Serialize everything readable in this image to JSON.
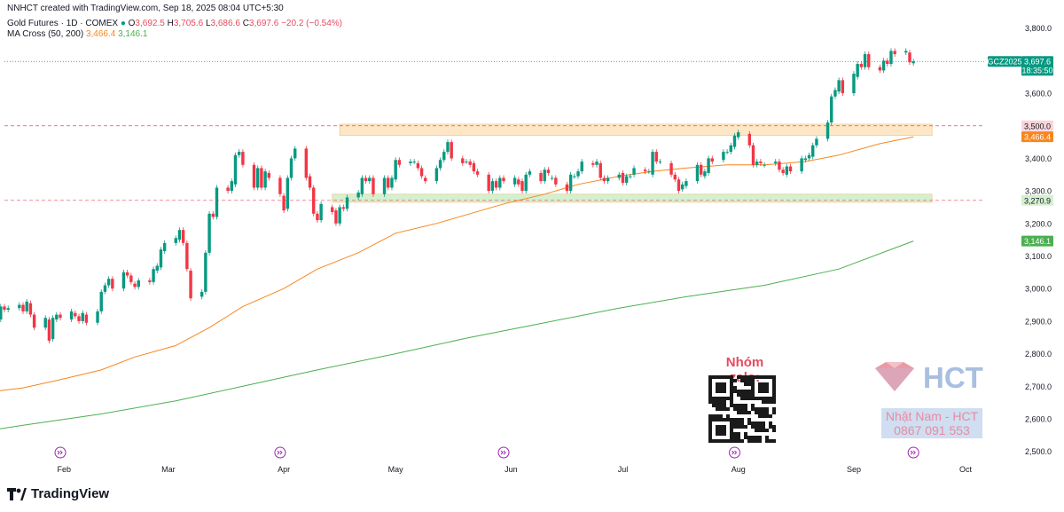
{
  "header": {
    "credit": "NNHCT created with TradingView.com, Sep 18, 2025 08:04 UTC+5:30",
    "symbol": "Gold Futures · 1D · COMEX",
    "ohlc": {
      "o_label": "O",
      "o": "3,692.5",
      "h_label": "H",
      "h": "3,705.6",
      "l_label": "L",
      "l": "3,686.6",
      "c_label": "C",
      "c": "3,697.6",
      "change": "−20.2 (−0.54%)"
    },
    "ma_label": "MA Cross (50, 200)",
    "ma50": "3,466.4",
    "ma200": "3,146.1"
  },
  "brand": {
    "name": "TradingView"
  },
  "watermark": {
    "group_label": "Nhóm zalo:",
    "logo_text": "HCT",
    "name": "Nhật Nam - HCT",
    "phone": "0867 091 553"
  },
  "chart_data": {
    "type": "candlestick",
    "ylim": [
      2480,
      3840
    ],
    "y_ticks": [
      2500,
      2600,
      2700,
      2800,
      2900,
      3000,
      3100,
      3200,
      3300,
      3400,
      3500,
      3600,
      3700,
      3800
    ],
    "y_tick_labels": [
      "2,500.0",
      "2,600.0",
      "2,700.0",
      "2,800.0",
      "2,900.0",
      "3,000.0",
      "3,100.0",
      "3,200.0",
      "3,300.0",
      "3,400.0",
      "3,500.0",
      "3,600.0",
      "3,700.0",
      "3,800.0"
    ],
    "x_labels": [
      "Feb",
      "Mar",
      "Apr",
      "May",
      "Jun",
      "Jul",
      "Aug",
      "Sep",
      "Oct"
    ],
    "x_label_dates": [
      "2025-02-01",
      "2025-03-01",
      "2025-04-01",
      "2025-05-01",
      "2025-06-01",
      "2025-07-01",
      "2025-08-01",
      "2025-09-01",
      "2025-10-01"
    ],
    "date_range": [
      "2025-01-16",
      "2025-10-06"
    ],
    "last_bar": "2025-09-17",
    "levels": {
      "resistance": 3500.0,
      "support": 3270.9,
      "last_price": 3697.6
    },
    "zones": [
      {
        "name": "resistance-zone",
        "from": 3470,
        "to": 3505,
        "start": "2025-04-16",
        "end": "2025-09-22",
        "color": "#fde7c6"
      },
      {
        "name": "support-zone",
        "from": 3265,
        "to": 3290,
        "start": "2025-04-14",
        "end": "2025-09-22",
        "color": "#d4f0cf"
      }
    ],
    "price_labels": [
      {
        "text": "3,800.0",
        "value": 3800,
        "kind": "tick"
      },
      {
        "text": "GCZ2025",
        "value": 3697.6,
        "kind": "symbol"
      },
      {
        "text": "3,697.6",
        "value": 3697.6,
        "kind": "last"
      },
      {
        "text": "18:35:50",
        "value": 3697.6,
        "kind": "countdown"
      },
      {
        "text": "3,500.0",
        "value": 3500,
        "kind": "line"
      },
      {
        "text": "3,466.4",
        "value": 3466.4,
        "kind": "ma50"
      },
      {
        "text": "3,270.9",
        "value": 3270.9,
        "kind": "support"
      },
      {
        "text": "3,146.1",
        "value": 3146.1,
        "kind": "ma200"
      }
    ],
    "ma50": [
      [
        0,
        2655
      ],
      [
        10,
        2658
      ],
      [
        20,
        2665
      ],
      [
        30,
        2680
      ],
      [
        40,
        2695
      ],
      [
        50,
        2720
      ],
      [
        60,
        2750
      ],
      [
        70,
        2790
      ],
      [
        80,
        2825
      ],
      [
        90,
        2880
      ],
      [
        100,
        2945
      ],
      [
        110,
        3000
      ],
      [
        120,
        3060
      ],
      [
        130,
        3110
      ],
      [
        140,
        3170
      ],
      [
        150,
        3200
      ],
      [
        160,
        3230
      ],
      [
        170,
        3260
      ],
      [
        180,
        3290
      ],
      [
        190,
        3320
      ],
      [
        200,
        3345
      ],
      [
        210,
        3360
      ],
      [
        220,
        3370
      ],
      [
        230,
        3380
      ],
      [
        240,
        3380
      ],
      [
        250,
        3390
      ],
      [
        260,
        3410
      ],
      [
        270,
        3445
      ],
      [
        280,
        3466
      ]
    ],
    "ma200": [
      [
        0,
        2515
      ],
      [
        20,
        2545
      ],
      [
        40,
        2580
      ],
      [
        60,
        2615
      ],
      [
        80,
        2655
      ],
      [
        100,
        2700
      ],
      [
        120,
        2750
      ],
      [
        140,
        2800
      ],
      [
        160,
        2850
      ],
      [
        180,
        2895
      ],
      [
        200,
        2940
      ],
      [
        220,
        2975
      ],
      [
        240,
        3010
      ],
      [
        260,
        3060
      ],
      [
        280,
        3146
      ]
    ],
    "candles": [
      [
        2690,
        2720
      ],
      [
        2715,
        2730
      ],
      [
        2720,
        2700
      ],
      [
        2705,
        2750
      ],
      [
        2745,
        2760
      ],
      [
        2760,
        2735
      ],
      [
        2740,
        2765
      ],
      [
        2760,
        2780
      ],
      [
        2778,
        2750
      ],
      [
        2755,
        2765
      ],
      [
        2770,
        2755
      ],
      [
        2760,
        2830
      ],
      [
        2830,
        2820
      ],
      [
        2820,
        2840
      ],
      [
        2840,
        2860
      ],
      [
        2860,
        2880
      ],
      [
        2875,
        2870
      ],
      [
        2870,
        2895
      ],
      [
        2890,
        2910
      ],
      [
        2905,
        2900
      ],
      [
        2900,
        2930
      ],
      [
        2925,
        2940
      ],
      [
        2935,
        2950
      ],
      [
        2950,
        2900
      ],
      [
        2905,
        2945
      ],
      [
        2945,
        2935
      ],
      [
        2935,
        2940
      ],
      [
        2940,
        2950
      ],
      [
        2950,
        2930
      ],
      [
        2930,
        2960
      ],
      [
        2955,
        2920
      ],
      [
        2920,
        2880
      ],
      [
        2880,
        2910
      ],
      [
        2905,
        2840
      ],
      [
        2845,
        2910
      ],
      [
        2905,
        2920
      ],
      [
        2920,
        2910
      ],
      [
        2905,
        2930
      ],
      [
        2925,
        2915
      ],
      [
        2915,
        2900
      ],
      [
        2900,
        2925
      ],
      [
        2920,
        2895
      ],
      [
        2895,
        2930
      ],
      [
        2930,
        2990
      ],
      [
        2990,
        3010
      ],
      [
        3010,
        3030
      ],
      [
        3030,
        3000
      ],
      [
        3000,
        3050
      ],
      [
        3050,
        3040
      ],
      [
        3040,
        3020
      ],
      [
        3015,
        3005
      ],
      [
        3005,
        3025
      ],
      [
        3025,
        3020
      ],
      [
        3020,
        3060
      ],
      [
        3055,
        3070
      ],
      [
        3065,
        3120
      ],
      [
        3115,
        3140
      ],
      [
        3140,
        3155
      ],
      [
        3150,
        3180
      ],
      [
        3180,
        3140
      ],
      [
        3140,
        3060
      ],
      [
        3055,
        2970
      ],
      [
        2975,
        2990
      ],
      [
        2990,
        3110
      ],
      [
        3110,
        3230
      ],
      [
        3230,
        3220
      ],
      [
        3220,
        3310
      ],
      [
        3310,
        3300
      ],
      [
        3300,
        3330
      ],
      [
        3320,
        3410
      ],
      [
        3410,
        3420
      ],
      [
        3420,
        3380
      ],
      [
        3380,
        3310
      ],
      [
        3310,
        3370
      ],
      [
        3370,
        3310
      ],
      [
        3310,
        3360
      ],
      [
        3355,
        3340
      ],
      [
        3340,
        3290
      ],
      [
        3285,
        3240
      ],
      [
        3245,
        3340
      ],
      [
        3340,
        3400
      ],
      [
        3400,
        3430
      ],
      [
        3430,
        3340
      ],
      [
        3345,
        3310
      ],
      [
        3310,
        3230
      ],
      [
        3230,
        3210
      ],
      [
        3210,
        3260
      ],
      [
        3250,
        3235
      ],
      [
        3240,
        3200
      ],
      [
        3200,
        3250
      ],
      [
        3250,
        3245
      ],
      [
        3245,
        3280
      ],
      [
        3280,
        3295
      ],
      [
        3290,
        3340
      ],
      [
        3340,
        3330
      ],
      [
        3330,
        3340
      ],
      [
        3340,
        3290
      ],
      [
        3290,
        3340
      ],
      [
        3340,
        3310
      ],
      [
        3310,
        3340
      ],
      [
        3335,
        3395
      ],
      [
        3395,
        3380
      ],
      [
        3385,
        3390
      ],
      [
        3390,
        3390
      ],
      [
        3385,
        3370
      ],
      [
        3370,
        3345
      ],
      [
        3340,
        3330
      ],
      [
        3330,
        3370
      ],
      [
        3370,
        3395
      ],
      [
        3395,
        3420
      ],
      [
        3420,
        3450
      ],
      [
        3450,
        3400
      ],
      [
        3400,
        3385
      ],
      [
        3390,
        3390
      ],
      [
        3390,
        3380
      ],
      [
        3385,
        3360
      ],
      [
        3360,
        3350
      ],
      [
        3350,
        3300
      ],
      [
        3300,
        3330
      ],
      [
        3330,
        3310
      ],
      [
        3310,
        3340
      ],
      [
        3340,
        3330
      ],
      [
        3320,
        3340
      ],
      [
        3335,
        3320
      ],
      [
        3330,
        3300
      ],
      [
        3300,
        3350
      ],
      [
        3350,
        3360
      ],
      [
        3355,
        3330
      ],
      [
        3330,
        3365
      ],
      [
        3365,
        3355
      ],
      [
        3340,
        3340
      ],
      [
        3340,
        3320
      ],
      [
        3320,
        3300
      ],
      [
        3300,
        3350
      ],
      [
        3345,
        3345
      ],
      [
        3345,
        3360
      ],
      [
        3360,
        3390
      ],
      [
        3385,
        3380
      ],
      [
        3380,
        3390
      ],
      [
        3385,
        3340
      ],
      [
        3340,
        3330
      ],
      [
        3330,
        3340
      ],
      [
        3340,
        3350
      ],
      [
        3355,
        3325
      ],
      [
        3325,
        3345
      ],
      [
        3345,
        3345
      ],
      [
        3350,
        3370
      ],
      [
        3365,
        3360
      ],
      [
        3360,
        3360
      ],
      [
        3350,
        3420
      ],
      [
        3420,
        3390
      ],
      [
        3390,
        3390
      ],
      [
        3385,
        3350
      ],
      [
        3350,
        3335
      ],
      [
        3335,
        3300
      ],
      [
        3305,
        3320
      ],
      [
        3315,
        3330
      ],
      [
        3330,
        3380
      ],
      [
        3380,
        3350
      ],
      [
        3345,
        3360
      ],
      [
        3355,
        3400
      ],
      [
        3400,
        3390
      ],
      [
        3395,
        3420
      ],
      [
        3420,
        3420
      ],
      [
        3420,
        3440
      ],
      [
        3435,
        3470
      ],
      [
        3465,
        3480
      ],
      [
        3475,
        3440
      ],
      [
        3440,
        3380
      ],
      [
        3380,
        3390
      ],
      [
        3390,
        3385
      ],
      [
        3380,
        3380
      ],
      [
        3385,
        3390
      ],
      [
        3390,
        3365
      ],
      [
        3365,
        3355
      ],
      [
        3350,
        3375
      ],
      [
        3375,
        3360
      ],
      [
        3360,
        3400
      ],
      [
        3395,
        3400
      ],
      [
        3400,
        3410
      ],
      [
        3405,
        3440
      ],
      [
        3440,
        3460
      ],
      [
        3460,
        3510
      ],
      [
        3510,
        3590
      ],
      [
        3590,
        3610
      ],
      [
        3605,
        3640
      ],
      [
        3640,
        3600
      ],
      [
        3600,
        3660
      ],
      [
        3650,
        3690
      ],
      [
        3690,
        3680
      ],
      [
        3680,
        3720
      ],
      [
        3720,
        3680
      ],
      [
        3680,
        3670
      ],
      [
        3670,
        3700
      ],
      [
        3700,
        3690
      ],
      [
        3690,
        3730
      ],
      [
        3730,
        3720
      ],
      [
        3725,
        3730
      ],
      [
        3725,
        3695
      ],
      [
        3692,
        3698
      ]
    ]
  }
}
